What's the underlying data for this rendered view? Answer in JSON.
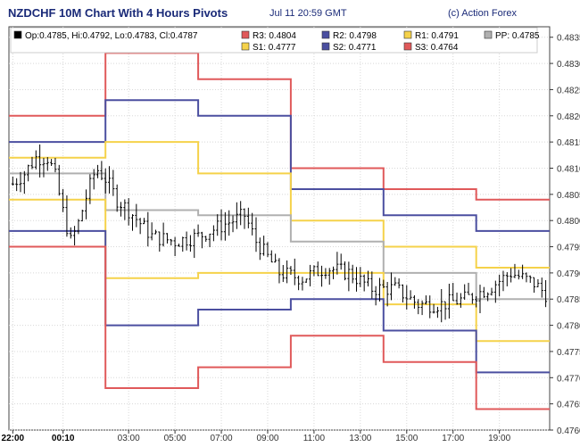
{
  "header": {
    "title": "NZDCHF 10M Chart With 4 Hours Pivots",
    "timestamp": "Jul 11 20:59 GMT",
    "credit": "(c) Action Forex"
  },
  "chart_data": {
    "type": "line",
    "title": "NZDCHF 10M Chart With 4 Hours Pivots",
    "ylim": [
      0.476,
      0.4837
    ],
    "grid": true,
    "legend_placement": "top-left",
    "y_ticks": [
      "0.4835",
      "0.4830",
      "0.4825",
      "0.4820",
      "0.4815",
      "0.4810",
      "0.4805",
      "0.4800",
      "0.4795",
      "0.4790",
      "0.4785",
      "0.4780",
      "0.4775",
      "0.4770",
      "0.4765",
      "0.4760"
    ],
    "x_ticks": [
      {
        "label": "22:00",
        "bold": true,
        "h": 0
      },
      {
        "label": "00:10",
        "bold": true,
        "h": 2.17
      },
      {
        "label": "03:00",
        "bold": false,
        "h": 5
      },
      {
        "label": "05:00",
        "bold": false,
        "h": 7
      },
      {
        "label": "07:00",
        "bold": false,
        "h": 9
      },
      {
        "label": "09:00",
        "bold": false,
        "h": 11
      },
      {
        "label": "11:00",
        "bold": false,
        "h": 13
      },
      {
        "label": "13:00",
        "bold": false,
        "h": 15
      },
      {
        "label": "15:00",
        "bold": false,
        "h": 17
      },
      {
        "label": "17:00",
        "bold": false,
        "h": 19
      },
      {
        "label": "19:00",
        "bold": false,
        "h": 21
      }
    ],
    "ohlc_legend": "Op:0.4785, Hi:0.4792, Lo:0.4783, Cl:0.4787",
    "legend": [
      {
        "key": "ohlc",
        "label": "Op:0.4785, Hi:0.4792, Lo:0.4783, Cl:0.4787",
        "color": "#000000"
      },
      {
        "key": "R3",
        "label": "R3: 0.4804",
        "color": "#e0595a"
      },
      {
        "key": "R2",
        "label": "R2: 0.4798",
        "color": "#4b4fa0"
      },
      {
        "key": "R1",
        "label": "R1: 0.4791",
        "color": "#f5d24a"
      },
      {
        "key": "PP",
        "label": "PP: 0.4785",
        "color": "#b0b0b0"
      },
      {
        "key": "S1",
        "label": "S1: 0.4777",
        "color": "#f5d24a"
      },
      {
        "key": "S2",
        "label": "S2: 0.4771",
        "color": "#4b4fa0"
      },
      {
        "key": "S3",
        "label": "S3: 0.4764",
        "color": "#e0595a"
      }
    ],
    "pivot_period_starts_hours": [
      0,
      4,
      8,
      12,
      16,
      20
    ],
    "pivot_series": [
      {
        "name": "R3",
        "color": "#e0595a",
        "values": [
          0.482,
          0.4832,
          0.4827,
          0.481,
          0.4806,
          0.4804
        ]
      },
      {
        "name": "R2",
        "color": "#4b4fa0",
        "values": [
          0.4815,
          0.4823,
          0.482,
          0.4806,
          0.4801,
          0.4798
        ]
      },
      {
        "name": "R1",
        "color": "#f5d24a",
        "values": [
          0.4812,
          0.4815,
          0.4809,
          0.48,
          0.4795,
          0.4791
        ]
      },
      {
        "name": "PP",
        "color": "#b0b0b0",
        "values": [
          0.4809,
          0.4802,
          0.4801,
          0.4796,
          0.479,
          0.4785
        ]
      },
      {
        "name": "S1",
        "color": "#f5d24a",
        "values": [
          0.4804,
          0.4789,
          0.479,
          0.479,
          0.4784,
          0.4777
        ]
      },
      {
        "name": "S2",
        "color": "#4b4fa0",
        "values": [
          0.4798,
          0.478,
          0.4783,
          0.4785,
          0.4779,
          0.4771
        ]
      },
      {
        "name": "S3",
        "color": "#e0595a",
        "values": [
          0.4795,
          0.4768,
          0.4772,
          0.4778,
          0.4773,
          0.4764
        ]
      }
    ],
    "price_series": {
      "name": "NZDCHF",
      "interval_minutes": 10,
      "approx_close_path": [
        {
          "h": 0.0,
          "v": 0.4807
        },
        {
          "h": 0.5,
          "v": 0.4809
        },
        {
          "h": 1.0,
          "v": 0.4812
        },
        {
          "h": 1.5,
          "v": 0.4812
        },
        {
          "h": 1.8,
          "v": 0.4809
        },
        {
          "h": 2.2,
          "v": 0.4801
        },
        {
          "h": 2.5,
          "v": 0.4796
        },
        {
          "h": 2.8,
          "v": 0.4799
        },
        {
          "h": 3.2,
          "v": 0.4805
        },
        {
          "h": 3.6,
          "v": 0.481
        },
        {
          "h": 4.0,
          "v": 0.4808
        },
        {
          "h": 4.5,
          "v": 0.4804
        },
        {
          "h": 5.0,
          "v": 0.4802
        },
        {
          "h": 6.0,
          "v": 0.4797
        },
        {
          "h": 7.0,
          "v": 0.4796
        },
        {
          "h": 8.0,
          "v": 0.4797
        },
        {
          "h": 9.0,
          "v": 0.4799
        },
        {
          "h": 10.0,
          "v": 0.4801
        },
        {
          "h": 10.5,
          "v": 0.4796
        },
        {
          "h": 11.5,
          "v": 0.479
        },
        {
          "h": 12.5,
          "v": 0.4789
        },
        {
          "h": 13.5,
          "v": 0.4791
        },
        {
          "h": 14.5,
          "v": 0.479
        },
        {
          "h": 15.5,
          "v": 0.4787
        },
        {
          "h": 16.5,
          "v": 0.4787
        },
        {
          "h": 17.5,
          "v": 0.4784
        },
        {
          "h": 18.5,
          "v": 0.4784
        },
        {
          "h": 19.5,
          "v": 0.4785
        },
        {
          "h": 20.5,
          "v": 0.4787
        },
        {
          "h": 21.5,
          "v": 0.479
        },
        {
          "h": 22.5,
          "v": 0.4788
        },
        {
          "h": 23.0,
          "v": 0.4786
        }
      ]
    },
    "colors": {
      "candle": "#000000",
      "grid": "#d8d8d8",
      "axis": "#333333"
    }
  }
}
